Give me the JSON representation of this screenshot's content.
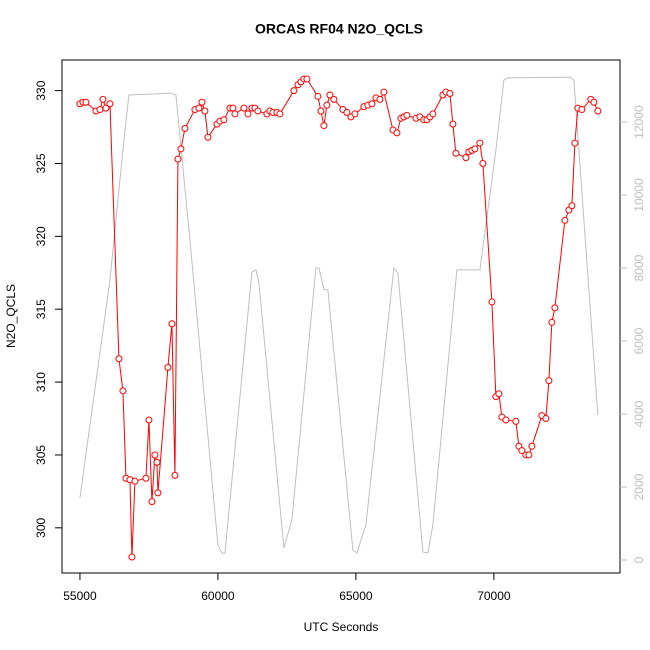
{
  "chart_data": {
    "type": "line",
    "title": "ORCAS RF04 N2O_QCLS",
    "x_label": "UTC Seconds",
    "y_label": "N2O_QCLS",
    "xlim": [
      54350,
      74570
    ],
    "xticks": [
      55000,
      60000,
      65000,
      70000
    ],
    "ylim": [
      296.9,
      332.1
    ],
    "yticks": [
      300,
      305,
      310,
      315,
      320,
      325,
      330
    ],
    "y2lim": [
      -356,
      13700
    ],
    "y2ticks": [
      0,
      2000,
      4000,
      6000,
      8000,
      10000,
      12000
    ],
    "y2_color": "#bebebe",
    "series": [
      {
        "color": "#bebebe",
        "axis": "y2",
        "markers": false,
        "x": [
          55000,
          56087,
          56594,
          56775,
          58297,
          58478,
          58986,
          60000,
          60145,
          60254,
          61232,
          61377,
          61486,
          62391,
          62681,
          63551,
          63659,
          63841,
          63986,
          64891,
          65036,
          65362,
          66377,
          66522,
          67428,
          67609,
          67790,
          68659,
          69493,
          70072,
          70362,
          70507,
          72754,
          72899,
          73768
        ],
        "values": [
          1700,
          7670,
          11510,
          12740,
          12790,
          12740,
          8770,
          410,
          190,
          190,
          7890,
          7950,
          7590,
          330,
          1100,
          8000,
          8000,
          7420,
          7400,
          270,
          190,
          960,
          8000,
          7860,
          220,
          190,
          960,
          7950,
          7950,
          11230,
          13150,
          13210,
          13230,
          13150,
          3970
        ]
      },
      {
        "color": "#ff0000",
        "axis": "y",
        "markers": true,
        "x": [
          55000,
          55109,
          55217,
          55580,
          55725,
          55833,
          55942,
          56087,
          56413,
          56558,
          56667,
          56812,
          56884,
          56993,
          57391,
          57500,
          57609,
          57717,
          57790,
          57826,
          58188,
          58333,
          58442,
          58551,
          58659,
          58804,
          59167,
          59312,
          59420,
          59529,
          59638,
          59964,
          60072,
          60217,
          60435,
          60543,
          60616,
          60942,
          61087,
          61232,
          61341,
          61449,
          61775,
          61884,
          61993,
          62138,
          62246,
          62754,
          62899,
          63007,
          63116,
          63225,
          63623,
          63732,
          63841,
          63949,
          64058,
          64203,
          64529,
          64674,
          64819,
          64964,
          65290,
          65435,
          65580,
          65725,
          65870,
          66014,
          66341,
          66486,
          66630,
          66739,
          66848,
          67174,
          67319,
          67464,
          67572,
          67681,
          67790,
          68152,
          68261,
          68406,
          68514,
          68623,
          68986,
          69094,
          69203,
          69312,
          69493,
          69601,
          69928,
          70072,
          70181,
          70290,
          70435,
          70797,
          70906,
          71014,
          71159,
          71268,
          71377,
          71739,
          71884,
          71993,
          72101,
          72210,
          72572,
          72717,
          72826,
          72935,
          73043,
          73188,
          73514,
          73623,
          73768
        ],
        "values": [
          329.1,
          329.2,
          329.2,
          328.6,
          328.7,
          329.4,
          328.8,
          329.1,
          311.6,
          309.4,
          303.4,
          303.3,
          298.0,
          303.2,
          303.4,
          307.4,
          301.8,
          305.0,
          304.5,
          302.4,
          311.0,
          314.0,
          303.6,
          325.3,
          326.0,
          327.4,
          328.7,
          328.8,
          329.2,
          328.6,
          326.8,
          327.7,
          327.9,
          328.0,
          328.8,
          328.8,
          328.4,
          328.8,
          328.4,
          328.8,
          328.8,
          328.6,
          328.4,
          328.6,
          328.5,
          328.5,
          328.4,
          330.0,
          330.4,
          330.6,
          330.8,
          330.8,
          329.6,
          328.6,
          327.6,
          329.0,
          329.7,
          329.4,
          328.7,
          328.5,
          328.2,
          328.4,
          328.9,
          329.0,
          329.1,
          329.5,
          329.4,
          329.9,
          327.3,
          327.1,
          328.1,
          328.2,
          328.3,
          328.1,
          328.2,
          328.0,
          328.0,
          328.2,
          328.4,
          329.7,
          329.9,
          329.8,
          327.7,
          325.7,
          325.4,
          325.8,
          325.9,
          326.0,
          326.4,
          325.0,
          315.5,
          309.0,
          309.2,
          307.6,
          307.4,
          307.3,
          305.6,
          305.3,
          305.0,
          305.0,
          305.6,
          307.7,
          307.5,
          310.1,
          314.1,
          315.1,
          321.1,
          321.8,
          322.1,
          326.4,
          328.8,
          328.7,
          329.4,
          329.2,
          328.6
        ]
      }
    ]
  }
}
